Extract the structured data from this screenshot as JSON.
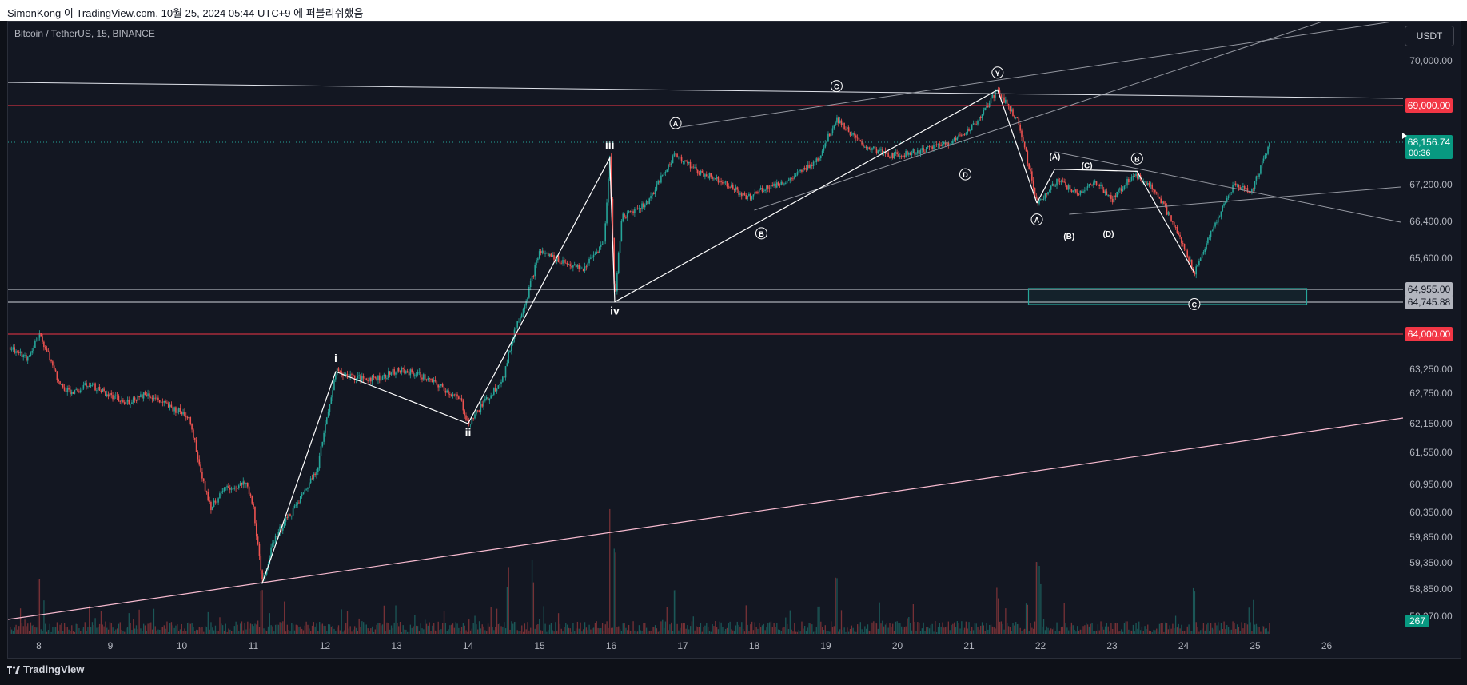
{
  "header": {
    "title": "SimonKong 이 TradingView.com, 10월 25, 2024 05:44 UTC+9 에 퍼블리쉬했음"
  },
  "chart_header": {
    "symbol": "Bitcoin / TetherUS, 15, BINANCE",
    "currency_button": "USDT"
  },
  "footer": {
    "brand": "TradingView"
  },
  "colors": {
    "background": "#131722",
    "up": "#26a69a",
    "down": "#ef5350",
    "resistance": "#f23645",
    "support_line": "#d1d4dc",
    "trendline_pink": "#f8bbd0",
    "box": "#26a69a",
    "last_price": "#089981"
  },
  "chart_data": {
    "type": "candlestick",
    "x_axis": {
      "tick_labels": [
        "8",
        "9",
        "10",
        "11",
        "12",
        "13",
        "14",
        "15",
        "16",
        "17",
        "18",
        "19",
        "20",
        "21",
        "22",
        "23",
        "24",
        "25",
        "26"
      ],
      "range_days": [
        7.6,
        26.95
      ]
    },
    "y_axis": {
      "tick_labels": [
        "70,000.00",
        "67,200.00",
        "66,400.00",
        "65,600.00",
        "63,250.00",
        "62,750.00",
        "62,150.00",
        "61,550.00",
        "60,950.00",
        "60,350.00",
        "59,850.00",
        "59,350.00",
        "58,850.00",
        "58,370.00"
      ],
      "ticks_values": [
        70000,
        67200,
        66400,
        65600,
        63250,
        62750,
        62150,
        61550,
        60950,
        60350,
        59850,
        59350,
        58850,
        58370
      ],
      "scale": "piecewise"
    },
    "price_path": [
      [
        7.6,
        63720
      ],
      [
        7.85,
        63450
      ],
      [
        8.0,
        64020
      ],
      [
        8.15,
        63500
      ],
      [
        8.3,
        62900
      ],
      [
        8.5,
        62750
      ],
      [
        8.7,
        62950
      ],
      [
        9.0,
        62700
      ],
      [
        9.2,
        62550
      ],
      [
        9.5,
        62750
      ],
      [
        9.8,
        62500
      ],
      [
        10.1,
        62300
      ],
      [
        10.25,
        61300
      ],
      [
        10.4,
        60450
      ],
      [
        10.6,
        60850
      ],
      [
        10.9,
        60950
      ],
      [
        11.0,
        60450
      ],
      [
        11.12,
        58950
      ],
      [
        11.3,
        59850
      ],
      [
        11.6,
        60500
      ],
      [
        11.9,
        61300
      ],
      [
        12.15,
        63200
      ],
      [
        12.5,
        63050
      ],
      [
        12.8,
        63080
      ],
      [
        13.0,
        63230
      ],
      [
        13.3,
        63150
      ],
      [
        13.6,
        62900
      ],
      [
        13.9,
        62600
      ],
      [
        14.0,
        62150
      ],
      [
        14.3,
        62700
      ],
      [
        14.5,
        63100
      ],
      [
        14.65,
        64100
      ],
      [
        14.85,
        64950
      ],
      [
        15.0,
        65750
      ],
      [
        15.3,
        65550
      ],
      [
        15.6,
        65350
      ],
      [
        15.9,
        65950
      ],
      [
        15.98,
        67800
      ],
      [
        16.05,
        64750
      ],
      [
        16.15,
        66500
      ],
      [
        16.5,
        66800
      ],
      [
        16.9,
        67900
      ],
      [
        17.2,
        67500
      ],
      [
        17.6,
        67250
      ],
      [
        17.9,
        66900
      ],
      [
        18.1,
        67100
      ],
      [
        18.5,
        67300
      ],
      [
        18.9,
        67800
      ],
      [
        19.15,
        68700
      ],
      [
        19.5,
        68100
      ],
      [
        19.9,
        67850
      ],
      [
        20.3,
        67950
      ],
      [
        20.8,
        68200
      ],
      [
        21.1,
        68600
      ],
      [
        21.4,
        69350
      ],
      [
        21.7,
        68600
      ],
      [
        21.95,
        66800
      ],
      [
        22.25,
        67300
      ],
      [
        22.5,
        67000
      ],
      [
        22.8,
        67250
      ],
      [
        23.0,
        66850
      ],
      [
        23.3,
        67450
      ],
      [
        23.6,
        67100
      ],
      [
        23.9,
        66200
      ],
      [
        24.15,
        65300
      ],
      [
        24.4,
        66200
      ],
      [
        24.7,
        67200
      ],
      [
        24.95,
        67050
      ],
      [
        25.2,
        68120
      ]
    ],
    "last_price": "68,156.74",
    "countdown": "00:36",
    "volume_label": "267",
    "horizontal_levels": [
      {
        "price": 69000,
        "label": "69,000.00",
        "color": "#f23645",
        "style": "solid"
      },
      {
        "price": 64000,
        "label": "64,000.00",
        "color": "#f23645",
        "style": "solid"
      },
      {
        "price": 64955,
        "label": "64,955.00",
        "color": "#d1d4dc",
        "style": "solid"
      },
      {
        "price": 64745.88,
        "label": "64,745.88",
        "color": "#d1d4dc",
        "style": "solid"
      }
    ],
    "demand_zone": {
      "x_from": 22.0,
      "x_to": 26.0,
      "price_top": 64955,
      "price_bottom": 64745.88
    },
    "wave_labels": [
      {
        "text": "i",
        "x": 12.15,
        "price": 63200,
        "pos": "above"
      },
      {
        "text": "ii",
        "x": 14.0,
        "price": 62150,
        "pos": "below"
      },
      {
        "text": "iii",
        "x": 15.98,
        "price": 67800,
        "pos": "above"
      },
      {
        "text": "iv",
        "x": 16.05,
        "price": 64750,
        "pos": "below"
      },
      {
        "text": "A",
        "x": 16.9,
        "price": 68300,
        "pos": "above",
        "circled": true
      },
      {
        "text": "B",
        "x": 18.1,
        "price": 66350,
        "pos": "below",
        "circled": true
      },
      {
        "text": "C",
        "x": 19.15,
        "price": 69150,
        "pos": "above",
        "circled": true
      },
      {
        "text": "D",
        "x": 20.95,
        "price": 67650,
        "pos": "below",
        "circled": true
      },
      {
        "text": "Y",
        "x": 21.4,
        "price": 69450,
        "pos": "above",
        "circled": true
      },
      {
        "text": "A",
        "x": 21.95,
        "price": 66650,
        "pos": "below",
        "circled": true
      },
      {
        "text": "(A)",
        "x": 22.2,
        "price": 67550,
        "pos": "above"
      },
      {
        "text": "(B)",
        "x": 22.4,
        "price": 66300,
        "pos": "below"
      },
      {
        "text": "(C)",
        "x": 22.65,
        "price": 67350,
        "pos": "above"
      },
      {
        "text": "(D)",
        "x": 22.95,
        "price": 66350,
        "pos": "below"
      },
      {
        "text": "B",
        "x": 23.35,
        "price": 67500,
        "pos": "above",
        "circled": true
      },
      {
        "text": "C",
        "x": 24.15,
        "price": 64870,
        "pos": "below",
        "circled": true
      }
    ]
  }
}
